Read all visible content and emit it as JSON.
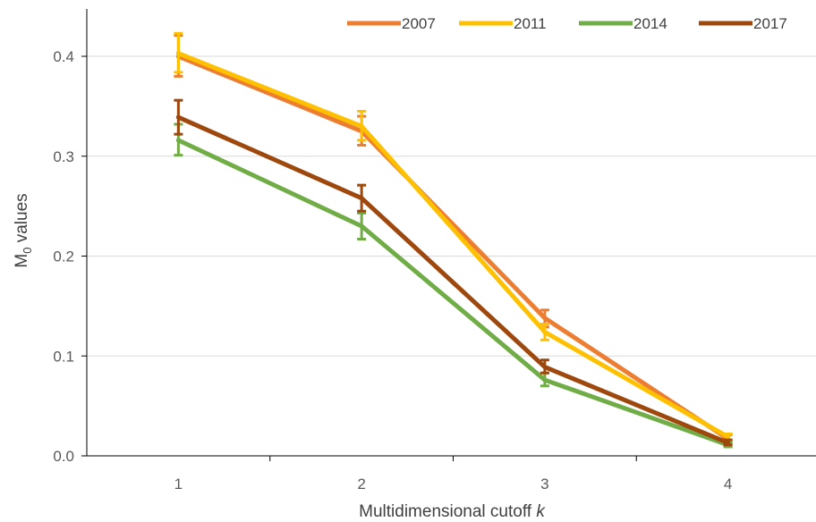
{
  "chart_data": {
    "type": "line",
    "xlabel_main": "Multidimensional cutoff ",
    "xlabel_var": "k",
    "ylabel_main": "M",
    "ylabel_sub": "0",
    "ylabel_rest": " values",
    "categories": [
      "1",
      "2",
      "3",
      "4"
    ],
    "ylim": [
      0,
      0.4
    ],
    "ytick_labels": [
      "0.0",
      "0.1",
      "0.2",
      "0.3",
      "0.4"
    ],
    "grid": "horizontal",
    "legend_position": "top-right",
    "series": [
      {
        "name": "2007",
        "color": "#ED7D31",
        "values": [
          0.4,
          0.325,
          0.138,
          0.017
        ],
        "err_low": [
          0.38,
          0.311,
          0.129,
          0.014
        ],
        "err_high": [
          0.421,
          0.34,
          0.146,
          0.021
        ]
      },
      {
        "name": "2011",
        "color": "#FFC000",
        "values": [
          0.403,
          0.33,
          0.124,
          0.019
        ],
        "err_low": [
          0.384,
          0.316,
          0.116,
          0.016
        ],
        "err_high": [
          0.423,
          0.345,
          0.132,
          0.022
        ]
      },
      {
        "name": "2014",
        "color": "#70AD47",
        "values": [
          0.316,
          0.23,
          0.076,
          0.011
        ],
        "err_low": [
          0.301,
          0.217,
          0.07,
          0.009
        ],
        "err_high": [
          0.332,
          0.243,
          0.083,
          0.013
        ]
      },
      {
        "name": "2017",
        "color": "#9E480E",
        "values": [
          0.339,
          0.258,
          0.089,
          0.013
        ],
        "err_low": [
          0.322,
          0.245,
          0.083,
          0.011
        ],
        "err_high": [
          0.356,
          0.271,
          0.096,
          0.016
        ]
      }
    ]
  }
}
